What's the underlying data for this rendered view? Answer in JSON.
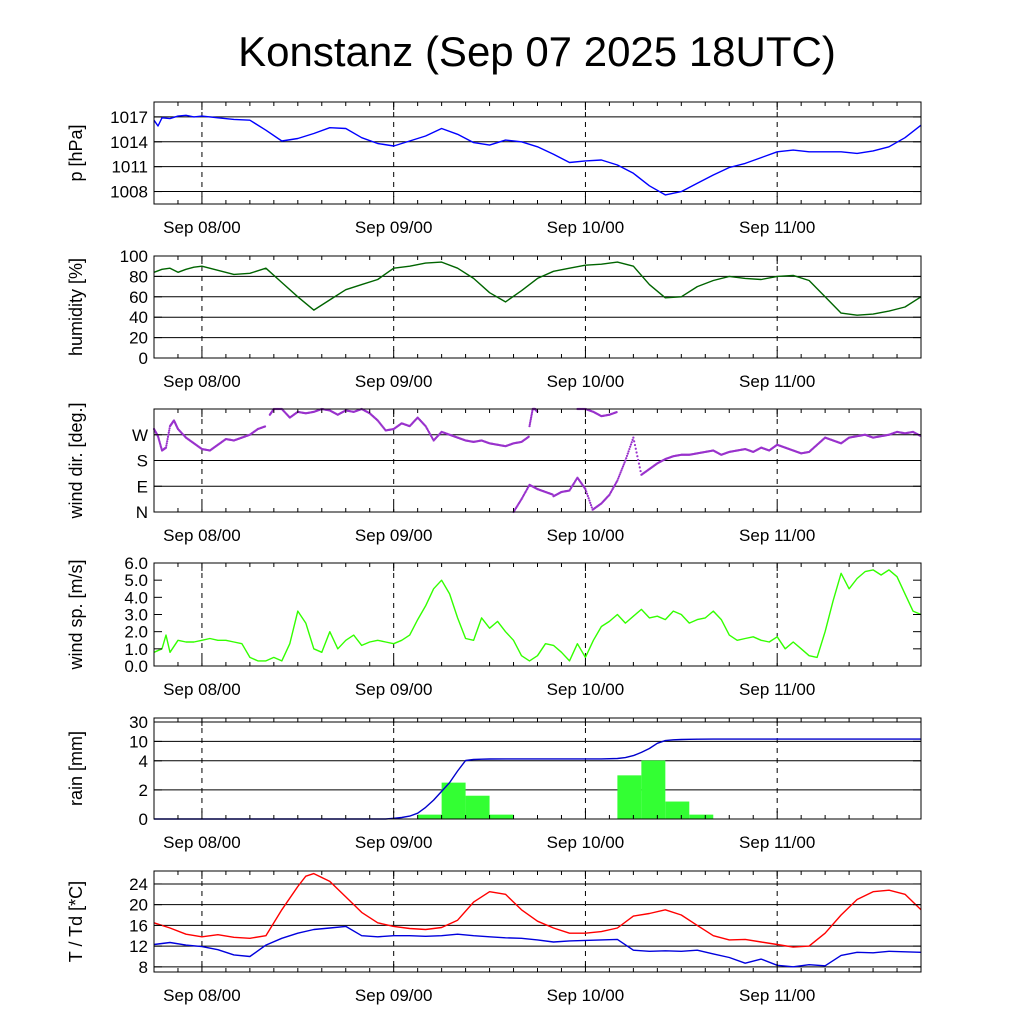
{
  "title": "Konstanz (Sep 07 2025 18UTC)",
  "x_tick_labels": [
    "Sep 08/00",
    "Sep 09/00",
    "Sep 10/00",
    "Sep 11/00"
  ],
  "chart_data": [
    {
      "type": "line",
      "ylabel": "p [hPa]",
      "x_unit": "hours since Sep 07 18UTC",
      "xlim": [
        0,
        96
      ],
      "ylim": [
        1006.5,
        1018.8
      ],
      "yticks": [
        1008,
        1011,
        1014,
        1017
      ],
      "ytick_labels": [
        "1008",
        "1011",
        "1014",
        "1017"
      ],
      "grid": true,
      "color": "#0000ff",
      "series": [
        {
          "x": [
            0,
            0.5,
            1,
            2,
            3,
            4,
            5,
            6,
            7,
            8,
            10,
            12,
            14,
            16,
            18,
            20,
            22,
            24,
            26,
            28,
            30,
            32,
            34,
            36,
            38,
            40,
            42,
            44,
            46,
            48,
            50,
            52,
            54,
            56,
            58,
            60,
            62,
            64,
            66,
            68,
            70,
            72,
            74,
            76,
            78,
            80,
            82,
            84,
            86,
            88,
            90,
            92,
            94,
            96
          ],
          "y": [
            1016.6,
            1015.9,
            1016.9,
            1016.8,
            1017.1,
            1017.2,
            1017.0,
            1017.1,
            1017.0,
            1016.9,
            1016.7,
            1016.6,
            1015.4,
            1014.1,
            1014.4,
            1015.0,
            1015.7,
            1015.6,
            1014.5,
            1013.8,
            1013.5,
            1014.1,
            1014.7,
            1015.6,
            1014.9,
            1013.9,
            1013.6,
            1014.2,
            1014.0,
            1013.4,
            1012.5,
            1011.5,
            1011.7,
            1011.8,
            1011.2,
            1010.2,
            1008.7,
            1007.6,
            1008.0,
            1009.0,
            1010.0,
            1010.9,
            1011.4,
            1012.1,
            1012.8,
            1013.0,
            1012.8,
            1012.8,
            1012.8,
            1012.6,
            1012.9,
            1013.4,
            1014.5,
            1016.0
          ]
        }
      ]
    },
    {
      "type": "line",
      "ylabel": "humidity [%]",
      "xlim": [
        0,
        96
      ],
      "ylim": [
        0,
        100
      ],
      "yticks": [
        0,
        20,
        40,
        60,
        80,
        100
      ],
      "ytick_labels": [
        "0",
        "20",
        "40",
        "60",
        "80",
        "100"
      ],
      "grid": true,
      "color": "#006400",
      "series": [
        {
          "x": [
            0,
            1,
            2,
            3,
            4,
            5,
            6,
            8,
            10,
            12,
            14,
            16,
            18,
            20,
            22,
            24,
            26,
            28,
            30,
            32,
            34,
            36,
            38,
            40,
            42,
            44,
            46,
            48,
            50,
            52,
            54,
            56,
            58,
            60,
            62,
            64,
            66,
            68,
            70,
            72,
            74,
            76,
            78,
            80,
            82,
            84,
            86,
            88,
            90,
            92,
            94,
            96
          ],
          "y": [
            84,
            87,
            88,
            84,
            87,
            89,
            90,
            86,
            82,
            83,
            88,
            74,
            60,
            47,
            57,
            67,
            72,
            77,
            88,
            90,
            93,
            94,
            88,
            78,
            64,
            55,
            66,
            78,
            85,
            88,
            91,
            92,
            94,
            90,
            72,
            59,
            60,
            70,
            76,
            80,
            78,
            77,
            80,
            81,
            76,
            60,
            44,
            42,
            43,
            46,
            50,
            60
          ]
        }
      ]
    },
    {
      "type": "scatter",
      "ylabel": "wind dir. [deg.]",
      "xlim": [
        0,
        96
      ],
      "ylim": [
        0,
        360
      ],
      "yticks": [
        0,
        90,
        180,
        270
      ],
      "ytick_labels": [
        "N",
        "E",
        "S",
        "W"
      ],
      "grid": true,
      "color": "#9932cc",
      "series": [
        {
          "x": [
            0,
            0.5,
            1,
            1.5,
            2,
            2.5,
            3,
            4,
            5,
            6,
            7,
            8,
            9,
            10,
            11,
            12,
            13,
            14
          ],
          "y": [
            290,
            265,
            215,
            225,
            300,
            320,
            290,
            260,
            240,
            220,
            215,
            235,
            255,
            250,
            260,
            270,
            290,
            300
          ]
        },
        {
          "x": [
            14.5,
            15,
            16,
            17,
            18,
            19,
            20,
            21,
            22,
            23,
            24,
            25,
            26,
            27,
            28,
            29,
            30,
            31,
            32,
            33,
            34,
            35,
            36,
            37,
            38,
            39,
            40,
            41,
            42,
            43,
            44,
            45,
            46,
            47
          ],
          "y": [
            340,
            360,
            360,
            330,
            350,
            345,
            350,
            360,
            355,
            340,
            355,
            350,
            360,
            345,
            320,
            285,
            290,
            310,
            300,
            330,
            300,
            250,
            280,
            270,
            260,
            250,
            245,
            250,
            240,
            235,
            230,
            240,
            245,
            265
          ]
        },
        {
          "x": [
            47,
            47.4,
            47.7,
            48
          ],
          "y": [
            300,
            360,
            360,
            350
          ]
        },
        {
          "x": [
            45,
            46,
            47,
            48,
            49,
            50
          ],
          "y": [
            0,
            45,
            95,
            80,
            70,
            60
          ]
        },
        {
          "x": [
            50,
            51,
            52,
            53,
            54,
            55
          ],
          "y": [
            55,
            70,
            75,
            120,
            80,
            0
          ]
        },
        {
          "x": [
            53,
            54,
            55,
            56,
            57,
            58
          ],
          "y": [
            360,
            360,
            350,
            335,
            340,
            350
          ]
        },
        {
          "x": [
            55,
            56,
            57,
            58,
            59,
            60,
            61,
            62,
            63,
            64,
            65,
            66,
            67,
            68,
            69,
            70,
            71,
            72,
            73,
            74,
            75,
            76,
            77,
            78,
            79,
            80,
            81,
            82,
            83,
            84,
            85,
            86,
            87,
            88,
            89,
            90,
            91,
            92,
            93,
            94,
            95,
            96
          ],
          "y": [
            10,
            30,
            60,
            110,
            180,
            260,
            130,
            150,
            170,
            185,
            195,
            200,
            200,
            205,
            210,
            215,
            200,
            210,
            215,
            220,
            210,
            225,
            215,
            235,
            225,
            215,
            205,
            210,
            235,
            260,
            250,
            240,
            260,
            265,
            270,
            260,
            265,
            270,
            280,
            275,
            280,
            265
          ]
        }
      ]
    },
    {
      "type": "line",
      "ylabel": "wind sp. [m/s]",
      "xlim": [
        0,
        96
      ],
      "ylim": [
        0,
        6
      ],
      "yticks": [
        0,
        1,
        2,
        3,
        4,
        5,
        6
      ],
      "ytick_labels": [
        "0.0",
        "1.0",
        "2.0",
        "3.0",
        "4.0",
        "5.0",
        "6.0"
      ],
      "grid": false,
      "color": "#33ff00",
      "series": [
        {
          "x": [
            0,
            1,
            1.5,
            2,
            3,
            4,
            5,
            6,
            7,
            8,
            9,
            10,
            11,
            12,
            13,
            14,
            15,
            16,
            17,
            18,
            19,
            20,
            21,
            22,
            23,
            24,
            25,
            26,
            27,
            28,
            29,
            30,
            31,
            32,
            33,
            34,
            35,
            36,
            37,
            38,
            39,
            40,
            41,
            42,
            43,
            44,
            45,
            46,
            47,
            48,
            49,
            50,
            51,
            52,
            53,
            54,
            55,
            56,
            57,
            58,
            59,
            60,
            61,
            62,
            63,
            64,
            65,
            66,
            67,
            68,
            69,
            70,
            71,
            72,
            73,
            74,
            75,
            76,
            77,
            78,
            79,
            80,
            81,
            82,
            83,
            84,
            85,
            86,
            87,
            88,
            89,
            90,
            91,
            92,
            93,
            94,
            95,
            96
          ],
          "y": [
            0.8,
            1.0,
            1.8,
            0.8,
            1.5,
            1.4,
            1.4,
            1.5,
            1.6,
            1.5,
            1.5,
            1.4,
            1.3,
            0.5,
            0.3,
            0.3,
            0.5,
            0.3,
            1.3,
            3.2,
            2.5,
            1.0,
            0.8,
            2.0,
            1.0,
            1.5,
            1.8,
            1.2,
            1.4,
            1.5,
            1.4,
            1.3,
            1.5,
            1.8,
            2.7,
            3.5,
            4.5,
            5.0,
            4.2,
            2.8,
            1.6,
            1.5,
            2.8,
            2.2,
            2.6,
            2.0,
            1.5,
            0.6,
            0.3,
            0.6,
            1.3,
            1.2,
            0.8,
            0.3,
            1.3,
            0.5,
            1.5,
            2.3,
            2.6,
            3.0,
            2.5,
            2.9,
            3.3,
            2.8,
            2.9,
            2.7,
            3.2,
            3.0,
            2.5,
            2.7,
            2.8,
            3.2,
            2.7,
            1.8,
            1.5,
            1.6,
            1.7,
            1.5,
            1.4,
            1.7,
            1.0,
            1.4,
            1.0,
            0.6,
            0.5,
            2.0,
            3.8,
            5.4,
            4.5,
            5.1,
            5.5,
            5.6,
            5.3,
            5.6,
            5.2,
            4.2,
            3.2,
            3.0
          ]
        }
      ]
    },
    {
      "type": "bar",
      "ylabel": "rain [mm]",
      "xlim": [
        0,
        96
      ],
      "yscale": "quasi-log",
      "yticks": [
        0,
        2,
        4,
        10,
        30
      ],
      "ytick_labels": [
        "0",
        "2",
        "4",
        "10",
        "30"
      ],
      "grid": true,
      "bar_color": "#33ff33",
      "line_color": "#0000cc",
      "bars": [
        {
          "x0": 33,
          "x1": 36,
          "value": 0.3
        },
        {
          "x0": 36,
          "x1": 39,
          "value": 2.5
        },
        {
          "x0": 39,
          "x1": 42,
          "value": 1.6
        },
        {
          "x0": 42,
          "x1": 45,
          "value": 0.3
        },
        {
          "x0": 58,
          "x1": 61,
          "value": 3.0
        },
        {
          "x0": 61,
          "x1": 64,
          "value": 4.1
        },
        {
          "x0": 64,
          "x1": 67,
          "value": 1.2
        },
        {
          "x0": 67,
          "x1": 70,
          "value": 0.3
        }
      ],
      "series": [
        {
          "x": [
            0,
            29,
            30,
            31,
            32,
            33,
            34,
            35,
            36,
            37,
            38,
            39,
            40,
            41,
            42,
            44,
            48,
            52,
            56,
            58,
            59,
            60,
            61,
            62,
            63,
            64,
            65,
            66,
            67,
            68,
            70,
            72,
            80,
            96
          ],
          "y": [
            0,
            0,
            0.05,
            0.1,
            0.2,
            0.4,
            0.8,
            1.3,
            1.9,
            2.5,
            3.3,
            4.1,
            4.4,
            4.5,
            4.55,
            4.6,
            4.6,
            4.6,
            4.6,
            4.7,
            5.0,
            5.6,
            6.6,
            7.8,
            9.4,
            10.8,
            11.6,
            12.0,
            12.2,
            12.3,
            12.4,
            12.4,
            12.4,
            12.4
          ]
        }
      ]
    },
    {
      "type": "line",
      "ylabel": "T / Td [*C]",
      "xlim": [
        0,
        96
      ],
      "ylim": [
        7,
        26.5
      ],
      "yticks": [
        8,
        12,
        16,
        20,
        24
      ],
      "ytick_labels": [
        "8",
        "12",
        "16",
        "20",
        "24"
      ],
      "grid": true,
      "series": [
        {
          "color": "#ff0000",
          "x": [
            0,
            2,
            4,
            6,
            8,
            10,
            12,
            14,
            16,
            18,
            19,
            20,
            22,
            24,
            26,
            28,
            30,
            32,
            34,
            36,
            38,
            40,
            42,
            44,
            46,
            48,
            50,
            52,
            54,
            56,
            58,
            60,
            62,
            64,
            66,
            68,
            70,
            72,
            74,
            76,
            78,
            80,
            82,
            84,
            86,
            88,
            90,
            92,
            94,
            96
          ],
          "y": [
            16.5,
            15.5,
            14.3,
            13.8,
            14.2,
            13.7,
            13.5,
            14.0,
            19.0,
            23.5,
            25.5,
            26.0,
            24.5,
            21.5,
            18.5,
            16.5,
            15.8,
            15.4,
            15.2,
            15.6,
            17.0,
            20.5,
            22.5,
            22.0,
            19.0,
            16.8,
            15.5,
            14.5,
            14.5,
            14.8,
            15.5,
            17.8,
            18.3,
            19.0,
            18.0,
            16.0,
            14.0,
            13.2,
            13.3,
            12.8,
            12.3,
            11.8,
            12.0,
            14.5,
            18.0,
            21.0,
            22.5,
            22.8,
            22.0,
            19.0
          ]
        },
        {
          "color": "#0000dd",
          "x": [
            0,
            2,
            4,
            6,
            8,
            10,
            12,
            14,
            16,
            18,
            20,
            22,
            24,
            26,
            28,
            30,
            32,
            34,
            36,
            38,
            40,
            42,
            44,
            46,
            48,
            50,
            52,
            54,
            56,
            58,
            60,
            62,
            64,
            66,
            68,
            70,
            72,
            74,
            76,
            78,
            80,
            82,
            84,
            86,
            88,
            90,
            92,
            94,
            96
          ],
          "y": [
            12.3,
            12.7,
            12.2,
            11.9,
            11.3,
            10.3,
            10.0,
            12.2,
            13.5,
            14.5,
            15.2,
            15.5,
            15.8,
            14.0,
            13.8,
            14.0,
            14.0,
            13.9,
            14.0,
            14.3,
            14.0,
            13.8,
            13.6,
            13.5,
            13.2,
            12.8,
            13.0,
            13.1,
            13.2,
            13.3,
            11.2,
            11.0,
            11.1,
            11.0,
            11.2,
            10.5,
            9.8,
            8.7,
            9.5,
            8.3,
            8.0,
            8.4,
            8.2,
            10.2,
            10.8,
            10.7,
            11.0,
            10.9,
            10.8
          ]
        }
      ]
    }
  ]
}
